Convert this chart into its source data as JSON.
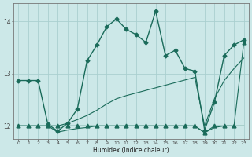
{
  "xlabel": "Humidex (Indice chaleur)",
  "bg_color": "#cce8e8",
  "line_color": "#1a6b5a",
  "grid_color": "#aacfcf",
  "xlim": [
    -0.5,
    23.5
  ],
  "ylim": [
    11.75,
    14.35
  ],
  "yticks": [
    12,
    13,
    14
  ],
  "xtick_labels": [
    "0",
    "1",
    "2",
    "3",
    "4",
    "5",
    "6",
    "7",
    "8",
    "9",
    "10",
    "11",
    "12",
    "13",
    "14",
    "15",
    "16",
    "17",
    "18",
    "19",
    "20",
    "21",
    "22",
    "23"
  ],
  "series": [
    {
      "x": [
        0,
        1,
        2,
        3,
        4,
        5,
        6,
        7,
        8,
        9,
        10,
        11,
        12,
        13,
        14,
        15,
        16,
        17,
        18,
        19,
        20,
        21,
        22,
        23
      ],
      "y": [
        12.87,
        12.87,
        12.87,
        12.03,
        11.9,
        12.05,
        12.32,
        13.25,
        13.55,
        13.9,
        14.05,
        13.85,
        13.75,
        13.6,
        14.2,
        13.35,
        13.45,
        13.1,
        13.05,
        11.92,
        12.45,
        13.35,
        13.55,
        13.65
      ],
      "marker": "D",
      "markersize": 2.5,
      "linewidth": 1.0
    },
    {
      "x": [
        0,
        1,
        2,
        3,
        4,
        5,
        6,
        7,
        8,
        9,
        10,
        11,
        12,
        13,
        14,
        15,
        16,
        17,
        18,
        19,
        20,
        21,
        22,
        23
      ],
      "y": [
        12.0,
        12.0,
        12.0,
        12.0,
        11.88,
        11.92,
        11.95,
        11.97,
        12.0,
        12.0,
        12.0,
        12.0,
        12.0,
        12.0,
        12.0,
        12.0,
        12.0,
        12.0,
        12.0,
        11.87,
        11.97,
        12.0,
        12.0,
        12.0
      ],
      "marker": null,
      "markersize": 0,
      "linewidth": 0.8
    },
    {
      "x": [
        0,
        1,
        2,
        3,
        4,
        5,
        6,
        7,
        8,
        9,
        10,
        11,
        12,
        13,
        14,
        15,
        16,
        17,
        18,
        19,
        20,
        21,
        22,
        23
      ],
      "y": [
        12.0,
        12.0,
        12.0,
        12.0,
        12.0,
        12.05,
        12.12,
        12.2,
        12.3,
        12.42,
        12.52,
        12.58,
        12.63,
        12.68,
        12.73,
        12.78,
        12.83,
        12.88,
        12.93,
        12.0,
        12.52,
        12.87,
        13.1,
        13.3
      ],
      "marker": null,
      "markersize": 0,
      "linewidth": 0.8
    },
    {
      "x": [
        0,
        1,
        2,
        3,
        4,
        5,
        6,
        7,
        8,
        9,
        10,
        11,
        12,
        13,
        14,
        15,
        16,
        17,
        18,
        19,
        20,
        21,
        22,
        23
      ],
      "y": [
        12.0,
        12.0,
        12.0,
        12.0,
        12.0,
        12.0,
        12.0,
        12.0,
        12.0,
        12.0,
        12.0,
        12.0,
        12.0,
        12.0,
        12.0,
        12.0,
        12.0,
        12.0,
        12.0,
        11.87,
        12.0,
        12.0,
        12.0,
        13.6
      ],
      "marker": "^",
      "markersize": 3.5,
      "linewidth": 0.8
    }
  ],
  "figwidth": 3.2,
  "figheight": 2.0,
  "dpi": 100
}
